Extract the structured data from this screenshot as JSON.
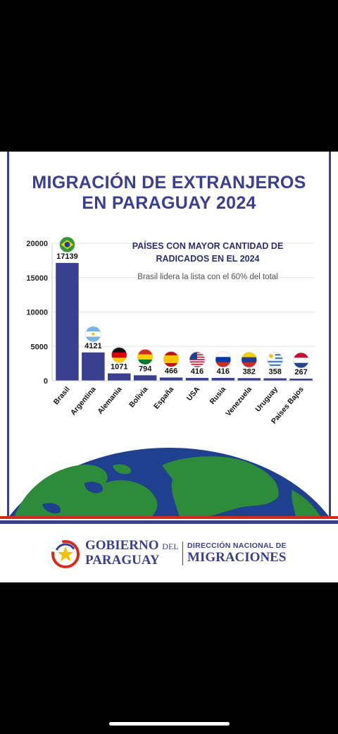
{
  "title": {
    "line1": "MIGRACIÓN DE EXTRANJEROS",
    "line2": "EN PARAGUAY 2024"
  },
  "subtitle": {
    "line1": "PAÍSES CON MAYOR CANTIDAD DE",
    "line2": "RADICADOS EN EL 2024"
  },
  "note": "Brasil lidera la lista con el 60% del total",
  "chart_data": {
    "type": "bar",
    "categories": [
      "Brasil",
      "Argentina",
      "Alemania",
      "Bolivia",
      "España",
      "USA",
      "Rusia",
      "Venezuela",
      "Uruguay",
      "Países Bajos"
    ],
    "values": [
      17139,
      4121,
      1071,
      794,
      466,
      416,
      416,
      382,
      358,
      267
    ],
    "flags": [
      "brazil-flag",
      "argentina-flag",
      "germany-flag",
      "bolivia-flag",
      "spain-flag",
      "usa-flag",
      "russia-flag",
      "venezuela-flag",
      "uruguay-flag",
      "netherlands-flag"
    ],
    "yticks": [
      0,
      5000,
      10000,
      15000,
      20000
    ],
    "ylim": [
      0,
      20000
    ],
    "grid": true,
    "bar_color": "#3b3f8f"
  },
  "logo": {
    "gobierno": "GOBIERNO",
    "del": "DEL",
    "paraguay": "PARAGUAY",
    "direccion": "DIRECCIÓN NACIONAL DE",
    "migraciones": "MIGRACIONES"
  },
  "colors": {
    "navy": "#3b3f8f",
    "red": "#d52b1e",
    "ocean": "#1f3f8f",
    "land": "#2e8b3a"
  }
}
